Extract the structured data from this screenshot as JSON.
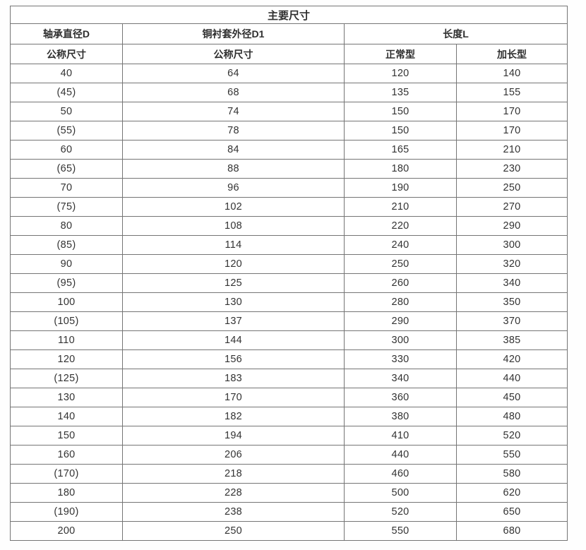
{
  "table": {
    "title": "主要尺寸",
    "col_groups": [
      {
        "label": "轴承直径D",
        "span": 1
      },
      {
        "label": "铜衬套外径D1",
        "span": 1
      },
      {
        "label": "长度L",
        "span": 2
      }
    ],
    "sub_headers": [
      "公称尺寸",
      "公称尺寸",
      "正常型",
      "加长型"
    ],
    "rows": [
      [
        "40",
        "64",
        "120",
        "140"
      ],
      [
        "(45)",
        "68",
        "135",
        "155"
      ],
      [
        "50",
        "74",
        "150",
        "170"
      ],
      [
        "(55)",
        "78",
        "150",
        "170"
      ],
      [
        "60",
        "84",
        "165",
        "210"
      ],
      [
        "(65)",
        "88",
        "180",
        "230"
      ],
      [
        "70",
        "96",
        "190",
        "250"
      ],
      [
        "(75)",
        "102",
        "210",
        "270"
      ],
      [
        "80",
        "108",
        "220",
        "290"
      ],
      [
        "(85)",
        "114",
        "240",
        "300"
      ],
      [
        "90",
        "120",
        "250",
        "320"
      ],
      [
        "(95)",
        "125",
        "260",
        "340"
      ],
      [
        "100",
        "130",
        "280",
        "350"
      ],
      [
        "(105)",
        "137",
        "290",
        "370"
      ],
      [
        "110",
        "144",
        "300",
        "385"
      ],
      [
        "120",
        "156",
        "330",
        "420"
      ],
      [
        "(125)",
        "183",
        "340",
        "440"
      ],
      [
        "130",
        "170",
        "360",
        "450"
      ],
      [
        "140",
        "182",
        "380",
        "480"
      ],
      [
        "150",
        "194",
        "410",
        "520"
      ],
      [
        "160",
        "206",
        "440",
        "550"
      ],
      [
        "(170)",
        "218",
        "460",
        "580"
      ],
      [
        "180",
        "228",
        "500",
        "620"
      ],
      [
        "(190)",
        "238",
        "520",
        "650"
      ],
      [
        "200",
        "250",
        "550",
        "680"
      ]
    ]
  },
  "colors": {
    "border": "#757575",
    "text": "#333333",
    "background": "#ffffff"
  }
}
